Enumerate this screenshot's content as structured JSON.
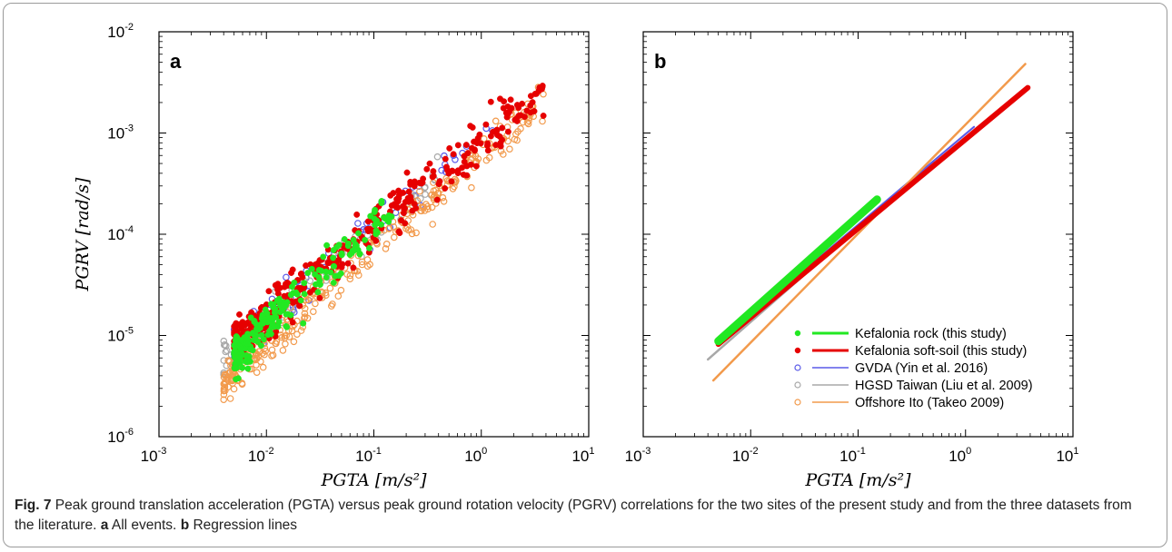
{
  "colors": {
    "rock": "#22e822",
    "soft": "#e60000",
    "gvda": "#5a5ae8",
    "hgsd": "#a8a8a8",
    "ito": "#f29a4c"
  },
  "caption": {
    "fig_label": "Fig. 7",
    "text1": "Peak ground translation acceleration (PGTA) versus peak ground rotation velocity (PGRV) correlations for the two sites of the present study and from the three datasets from the literature.",
    "label_a": "a",
    "text_a": "All events.",
    "label_b": "b",
    "text_b": "Regression lines"
  },
  "chart_data": [
    {
      "panel": "a",
      "type": "scatter",
      "xlabel": "PGTA [m/s²]",
      "ylabel": "PGRV [rad/s]",
      "xscale": "log",
      "yscale": "log",
      "xlim": [
        0.001,
        10
      ],
      "ylim": [
        1e-06,
        0.01
      ],
      "x_ticks": [
        "10^-3",
        "10^-2",
        "10^-1",
        "10^0",
        "10^1"
      ],
      "y_ticks": [
        "10^-6",
        "10^-5",
        "10^-4",
        "10^-3",
        "10^-2"
      ],
      "series": [
        {
          "key": "rock",
          "marker": "filled",
          "cloud": {
            "x_range": [
              0.005,
              0.15
            ],
            "slope": 0.98,
            "intercept_log10_at_x1": -2.93,
            "scatter_dex": 0.18
          }
        },
        {
          "key": "soft",
          "marker": "filled",
          "cloud": {
            "x_range": [
              0.005,
              3.8
            ],
            "slope": 0.86,
            "intercept_log10_at_x1": -3.07,
            "scatter_dex": 0.2
          }
        },
        {
          "key": "gvda",
          "marker": "open",
          "cloud": {
            "x_range": [
              0.005,
              1.3
            ],
            "slope": 0.93,
            "intercept_log10_at_x1": -3.0,
            "scatter_dex": 0.2
          }
        },
        {
          "key": "hgsd",
          "marker": "open",
          "cloud": {
            "x_range": [
              0.004,
              0.5
            ],
            "slope": 0.88,
            "intercept_log10_at_x1": -3.1,
            "scatter_dex": 0.18
          }
        },
        {
          "key": "ito",
          "marker": "open",
          "cloud": {
            "x_range": [
              0.004,
              3.8
            ],
            "slope": 0.93,
            "intercept_log10_at_x1": -3.23,
            "scatter_dex": 0.18
          }
        }
      ]
    },
    {
      "panel": "b",
      "type": "line",
      "xlabel": "PGTA [m/s²]",
      "xscale": "log",
      "yscale": "log",
      "xlim": [
        0.001,
        10
      ],
      "ylim": [
        1e-06,
        0.01
      ],
      "x_ticks": [
        "10^-3",
        "10^-2",
        "10^-1",
        "10^0",
        "10^1"
      ],
      "legend_position": "bottom-right",
      "series": [
        {
          "key": "hgsd",
          "name": "HGSD Taiwan (Liu et al. 2009)",
          "points": [
            [
              0.004,
              5.8e-06
            ],
            [
              0.5,
              0.00052
            ]
          ]
        },
        {
          "key": "gvda",
          "name": "GVDA (Yin et al. 2016)",
          "points": [
            [
              0.005,
              8.5e-06
            ],
            [
              1.2,
              0.00115
            ]
          ]
        },
        {
          "key": "ito",
          "name": "Offshore Ito (Takeo 2009)",
          "points": [
            [
              0.0045,
              3.6e-06
            ],
            [
              3.6,
              0.0048
            ]
          ]
        },
        {
          "key": "soft",
          "name": "Kefalonia soft-soil (this study)",
          "points": [
            [
              0.005,
              8.2e-06
            ],
            [
              3.8,
              0.0028
            ]
          ]
        },
        {
          "key": "rock",
          "name": "Kefalonia rock (this study)",
          "points": [
            [
              0.005,
              8.8e-06
            ],
            [
              0.15,
              0.00022
            ]
          ]
        }
      ]
    }
  ]
}
